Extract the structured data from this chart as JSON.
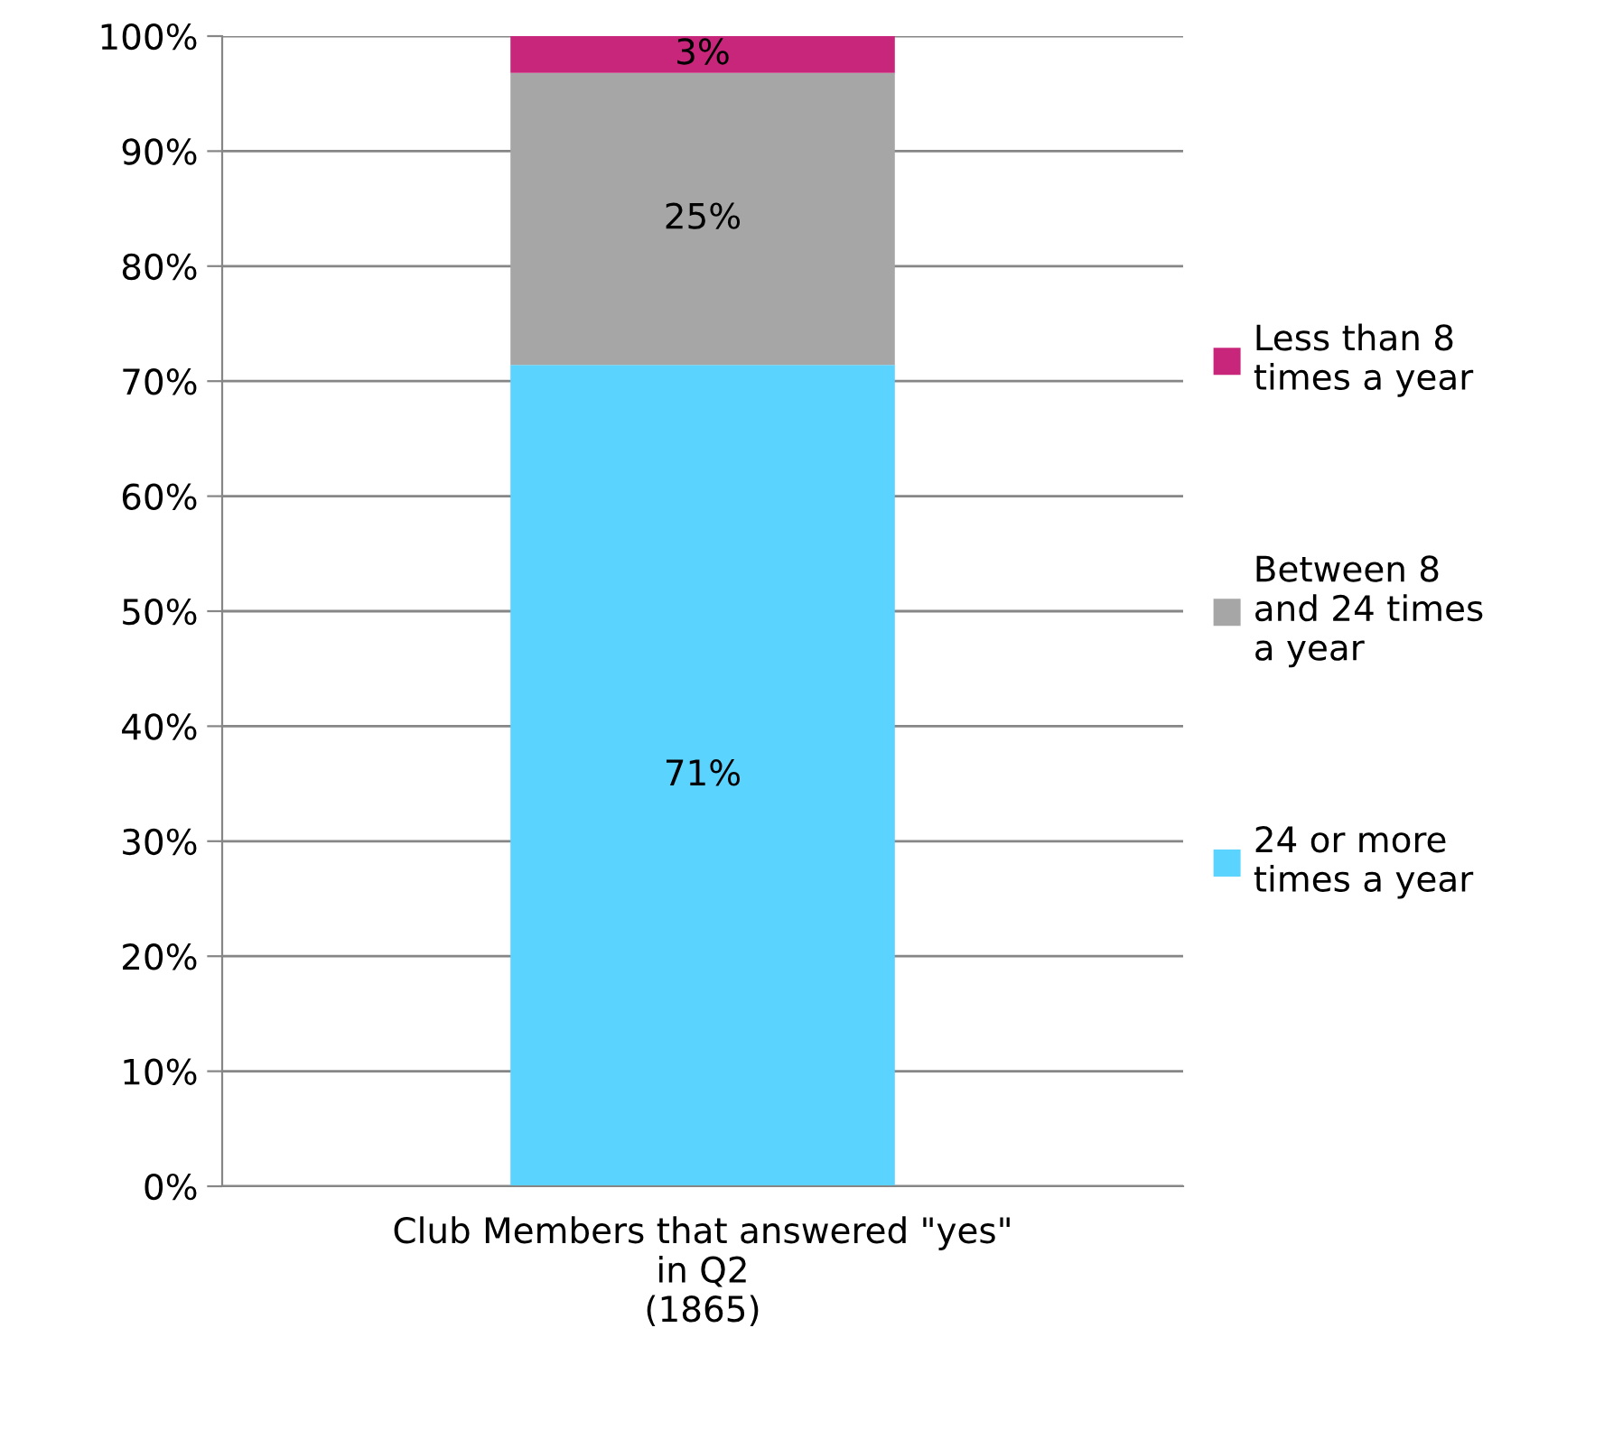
{
  "chart_data": {
    "type": "bar",
    "stacked": true,
    "categories": [
      "Club Members that answered \"yes\" in Q2\n(1865)"
    ],
    "series": [
      {
        "name": "24 or more times a year",
        "color": "#5bd3ff",
        "values": [
          71.4
        ],
        "value_labels": [
          "71%"
        ]
      },
      {
        "name": "Between 8 and 24 times a year",
        "color": "#a6a6a6",
        "values": [
          25.4
        ],
        "value_labels": [
          "25%"
        ]
      },
      {
        "name": "Less than 8 times a year",
        "color": "#c8267a",
        "values": [
          3.2
        ],
        "value_labels": [
          "3%"
        ]
      }
    ],
    "ylim": [
      0,
      100
    ],
    "yticks": [
      {
        "value": 0,
        "label": "0%"
      },
      {
        "value": 10,
        "label": "10%"
      },
      {
        "value": 20,
        "label": "20%"
      },
      {
        "value": 30,
        "label": "30%"
      },
      {
        "value": 40,
        "label": "40%"
      },
      {
        "value": 50,
        "label": "50%"
      },
      {
        "value": 60,
        "label": "60%"
      },
      {
        "value": 70,
        "label": "70%"
      },
      {
        "value": 80,
        "label": "80%"
      },
      {
        "value": 90,
        "label": "90%"
      },
      {
        "value": 100,
        "label": "100%"
      }
    ],
    "grid": "y",
    "legend": "right"
  }
}
